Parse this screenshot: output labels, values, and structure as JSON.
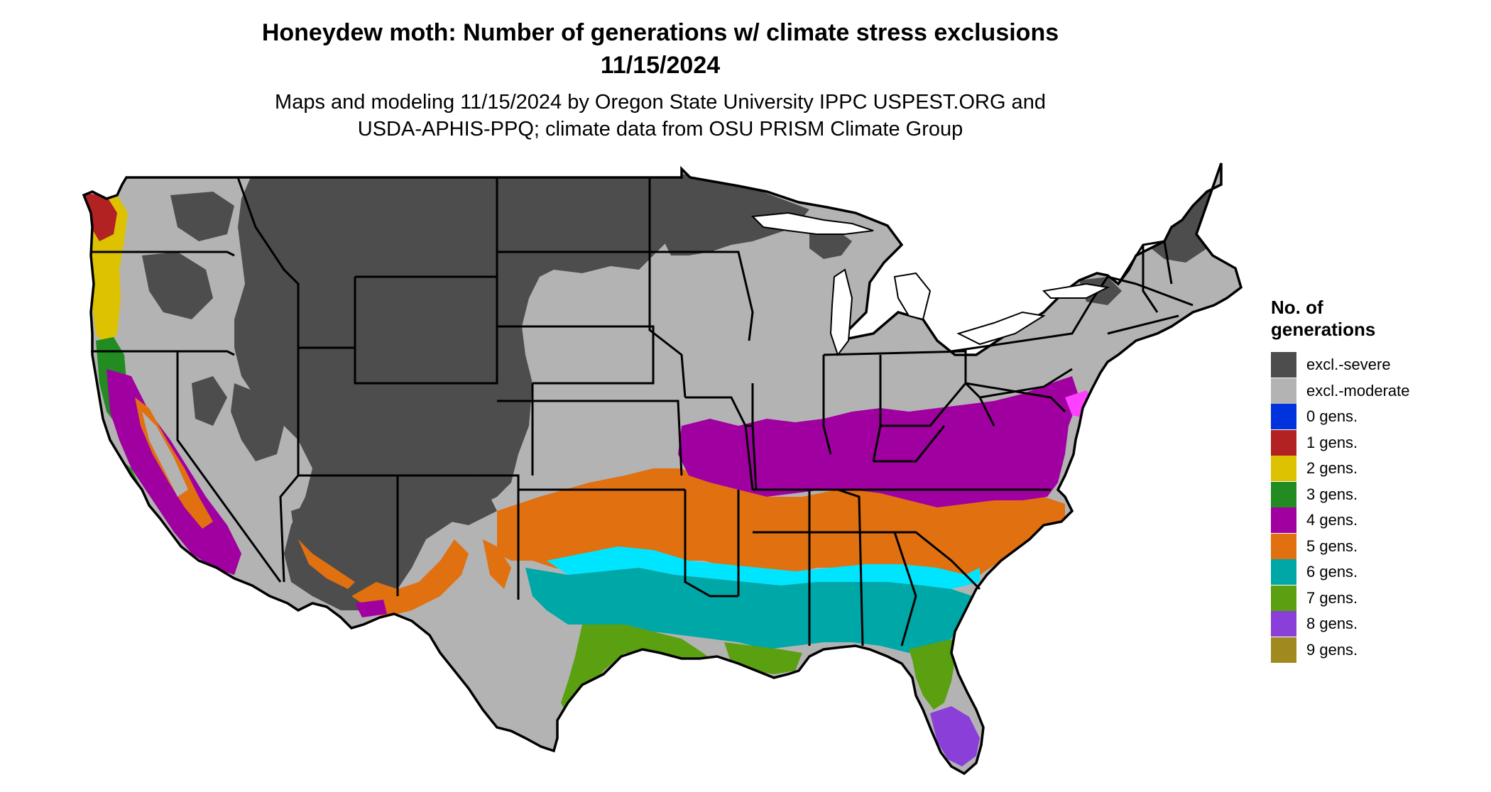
{
  "title": {
    "line1": "Honeydew moth: Number of generations w/ climate stress exclusions",
    "line2": "11/15/2024"
  },
  "subtitle": {
    "line1": "Maps and modeling 11/15/2024 by Oregon State University IPPC USPEST.ORG and",
    "line2": "USDA-APHIS-PPQ; climate data from OSU PRISM Climate Group"
  },
  "legend": {
    "title": "No. of\ngenerations",
    "items": [
      {
        "label": "excl.-severe",
        "color": "#4d4d4d"
      },
      {
        "label": "excl.-moderate",
        "color": "#b3b3b3"
      },
      {
        "label": "0 gens.",
        "color": "#0033dd"
      },
      {
        "label": "1 gens.",
        "color": "#b22222"
      },
      {
        "label": "2 gens.",
        "color": "#dcc200"
      },
      {
        "label": "3 gens.",
        "color": "#228b22"
      },
      {
        "label": "4 gens.",
        "color": "#a000a0"
      },
      {
        "label": "5 gens.",
        "color": "#e07010"
      },
      {
        "label": "6 gens.",
        "color": "#00a7a7"
      },
      {
        "label": "7 gens.",
        "color": "#5aa010"
      },
      {
        "label": "8 gens.",
        "color": "#8a3fd8"
      },
      {
        "label": "9 gens.",
        "color": "#a08a20"
      }
    ]
  },
  "map": {
    "colors": {
      "severe": "#4d4d4d",
      "moderate": "#b3b3b3",
      "g1": "#b22222",
      "g2": "#dcc200",
      "g3": "#228b22",
      "g4": "#a000a0",
      "g5": "#e07010",
      "g6": "#00a7a7",
      "g7": "#5aa010",
      "g8": "#8a3fd8",
      "g9": "#a08a20",
      "cyan_edge": "#00e5ff",
      "magenta_edge": "#ff40ff",
      "border": "#000000"
    }
  }
}
